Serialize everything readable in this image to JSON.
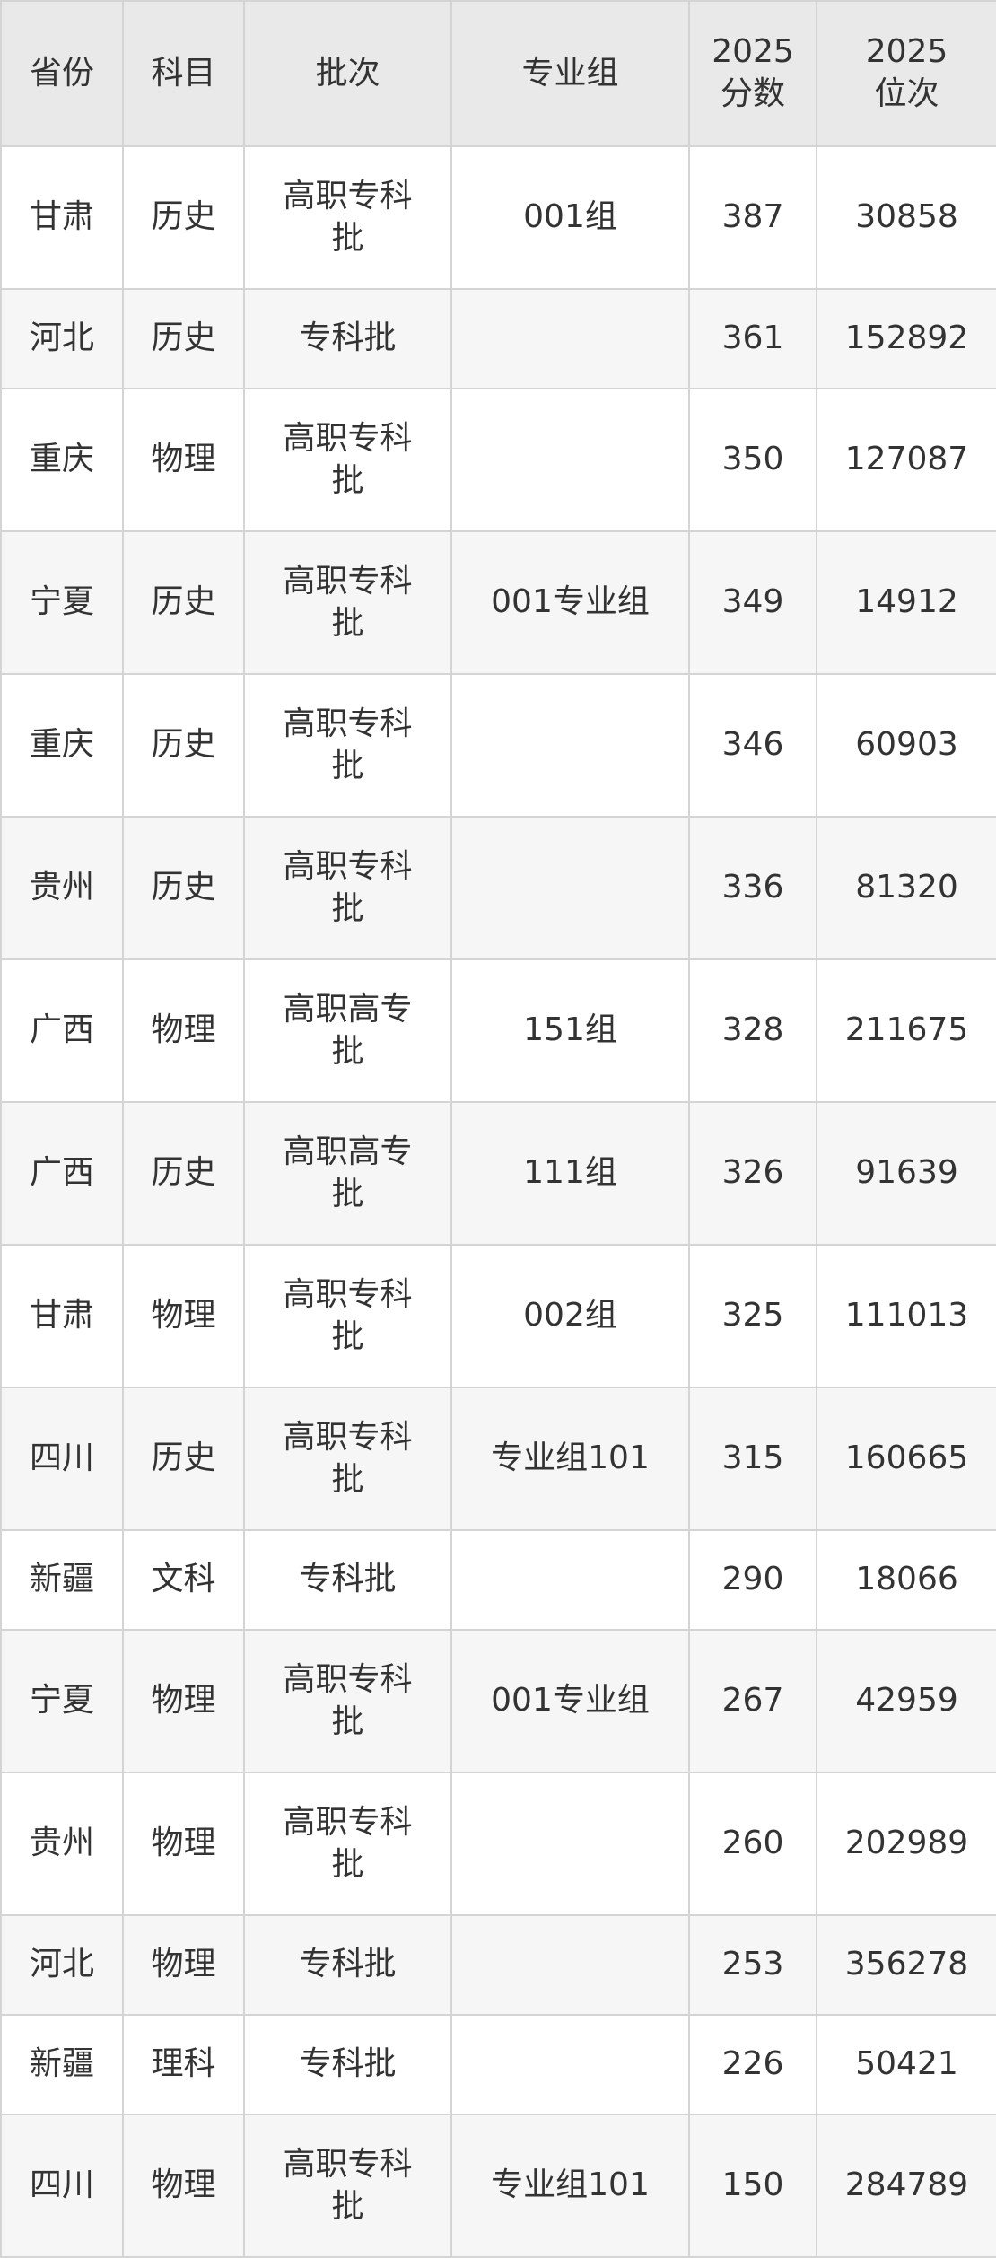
{
  "table": {
    "header": [
      "省份",
      "科目",
      "批次",
      "专业组",
      "2025分数",
      "2025位次"
    ],
    "rows": [
      [
        "甘肃",
        "历史",
        "高职专科批",
        "001组",
        387,
        30858
      ],
      [
        "河北",
        "历史",
        "专科批",
        null,
        361,
        152892
      ],
      [
        "重庆",
        "物理",
        "高职专科批",
        null,
        350,
        127087
      ],
      [
        "宁夏",
        "历史",
        "高职专科批",
        "001专业组",
        349,
        14912
      ],
      [
        "重庆",
        "历史",
        "高职专科批",
        null,
        346,
        60903
      ],
      [
        "贵州",
        "历史",
        "高职专科批",
        null,
        336,
        81320
      ],
      [
        "广西",
        "物理",
        "高职高专批",
        "151组",
        328,
        211675
      ],
      [
        "广西",
        "历史",
        "高职高专批",
        "111组",
        326,
        91639
      ],
      [
        "甘肃",
        "物理",
        "高职专科批",
        "002组",
        325,
        111013
      ],
      [
        "四川",
        "历史",
        "高职专科批",
        "专业组101",
        315,
        160665
      ],
      [
        "新疆",
        "文科",
        "专科批",
        null,
        290,
        18066
      ],
      [
        "宁夏",
        "物理",
        "高职专科批",
        "001专业组",
        267,
        42959
      ],
      [
        "贵州",
        "物理",
        "高职专科批",
        null,
        260,
        202989
      ],
      [
        "河北",
        "物理",
        "专科批",
        null,
        253,
        356278
      ],
      [
        "新疆",
        "理科",
        "专科批",
        null,
        226,
        50421
      ],
      [
        "四川",
        "物理",
        "高职专科批",
        "专业组101",
        150,
        284789
      ]
    ]
  }
}
